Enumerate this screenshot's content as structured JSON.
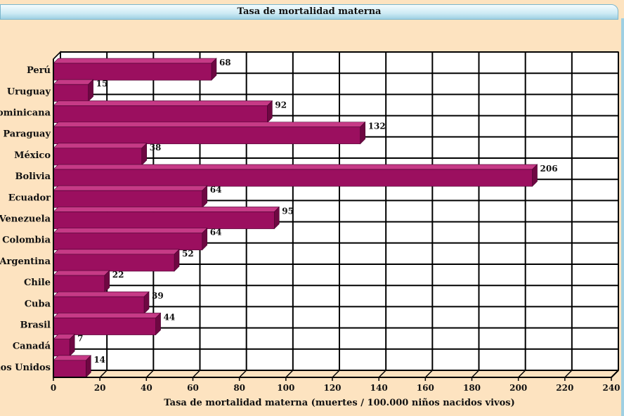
{
  "chart_data": {
    "type": "bar",
    "orientation": "horizontal",
    "title": "Tasa de mortalidad materna",
    "xlabel": "Tasa de mortalidad materna (muertes / 100.000 niños nacidos vivos)",
    "ylabel": "",
    "xlim": [
      0,
      240
    ],
    "xticks": [
      0,
      20,
      40,
      60,
      80,
      100,
      120,
      140,
      160,
      180,
      200,
      220,
      240
    ],
    "grid": true,
    "legend": "none",
    "categories": [
      "Perú",
      "Uruguay",
      "República Dominicana",
      "Paraguay",
      "México",
      "Bolivia",
      "Ecuador",
      "Venezuela",
      "Colombia",
      "Argentina",
      "Chile",
      "Cuba",
      "Brasil",
      "Canadá",
      "Estados Unidos"
    ],
    "values": [
      68,
      15,
      92,
      132,
      38,
      206,
      64,
      95,
      64,
      52,
      22,
      39,
      44,
      7,
      14
    ],
    "colors": {
      "bar": "#9b0f5f",
      "bar_top": "#c63a86",
      "bar_side": "#6e0842",
      "plot_bg": "#ffffff",
      "grid": "#000000"
    }
  }
}
